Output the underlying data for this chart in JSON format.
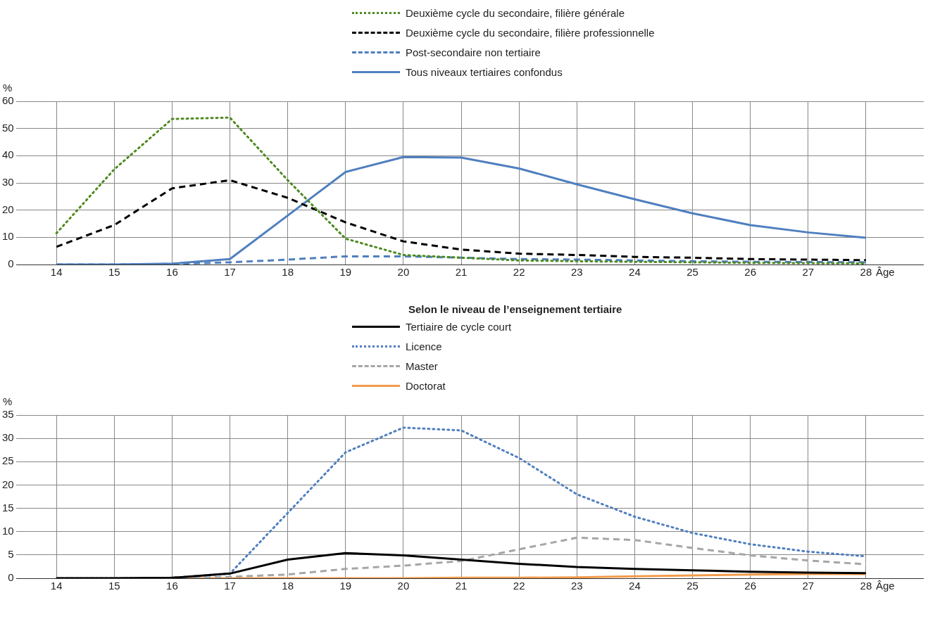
{
  "chart_data": [
    {
      "type": "line",
      "ylabel": "%",
      "xlabel": "Âge",
      "legend": "top",
      "grid": true,
      "marker": "none",
      "xlim": [
        13.3,
        29
      ],
      "xticks": [
        14,
        15,
        16,
        17,
        18,
        19,
        20,
        21,
        22,
        23,
        24,
        25,
        26,
        27,
        28
      ],
      "ylim": [
        0,
        60
      ],
      "yticks": [
        0,
        10,
        20,
        30,
        40,
        50,
        60
      ],
      "x": [
        14,
        15,
        16,
        17,
        18,
        19,
        20,
        21,
        22,
        23,
        24,
        25,
        26,
        27,
        28
      ],
      "series": [
        {
          "name": "Deuxième cycle du secondaire, filière générale",
          "color": "#4e8a1e",
          "line_style": "dotted",
          "values": [
            11.5,
            35,
            53.5,
            54,
            31,
            9.5,
            3.5,
            2.5,
            1.5,
            1.2,
            1,
            0.8,
            0.6,
            0.5,
            0.4
          ]
        },
        {
          "name": "Deuxième cycle du secondaire, filière professionnelle",
          "color": "#000000",
          "line_style": "dashed",
          "values": [
            6.5,
            14.5,
            28,
            31,
            24.5,
            15.5,
            8.5,
            5.5,
            4,
            3.5,
            2.8,
            2.5,
            2,
            1.8,
            1.6
          ]
        },
        {
          "name": "Post-secondaire non tertiaire",
          "color": "#4f7fbf",
          "line_style": "dashed",
          "values": [
            0,
            0,
            0.2,
            0.8,
            1.8,
            3,
            3,
            2.5,
            2,
            1.8,
            1.5,
            1.2,
            1,
            0.9,
            0.8
          ]
        },
        {
          "name": "Tous niveaux tertiaires confondus",
          "color": "#4f7fbf",
          "line_style": "solid",
          "values": [
            0,
            0,
            0.3,
            2,
            18,
            34,
            39.5,
            39.3,
            35.3,
            29.5,
            24,
            18.8,
            14.5,
            11.8,
            9.8
          ]
        }
      ]
    },
    {
      "type": "line",
      "title": "Selon le niveau de l’enseignement tertiaire",
      "ylabel": "%",
      "xlabel": "Âge",
      "legend": "top",
      "grid": true,
      "marker": "none",
      "xlim": [
        13.3,
        29
      ],
      "xticks": [
        14,
        15,
        16,
        17,
        18,
        19,
        20,
        21,
        22,
        23,
        24,
        25,
        26,
        27,
        28
      ],
      "ylim": [
        0,
        35
      ],
      "yticks": [
        0,
        5,
        10,
        15,
        20,
        25,
        30,
        35
      ],
      "x": [
        14,
        15,
        16,
        17,
        18,
        19,
        20,
        21,
        22,
        23,
        24,
        25,
        26,
        27,
        28
      ],
      "series": [
        {
          "name": "Tertiaire de cycle court",
          "color": "#000000",
          "line_style": "solid",
          "values": [
            0,
            0,
            0.1,
            1,
            4,
            5.4,
            4.9,
            4,
            3.1,
            2.4,
            2,
            1.7,
            1.4,
            1.2,
            1.1
          ]
        },
        {
          "name": "Licence",
          "color": "#4f7fbf",
          "line_style": "dotted",
          "values": [
            0,
            0,
            0.1,
            1,
            14,
            27,
            32.3,
            31.7,
            25.8,
            18,
            13.2,
            9.7,
            7.3,
            5.7,
            4.7
          ]
        },
        {
          "name": "Master",
          "color": "#a6a6a6",
          "line_style": "dashed",
          "values": [
            0,
            0,
            0,
            0.3,
            0.8,
            2,
            2.7,
            3.7,
            6.2,
            8.7,
            8.2,
            6.5,
            4.9,
            3.8,
            3
          ]
        },
        {
          "name": "Doctorat",
          "color": "#f29b4b",
          "line_style": "solid",
          "values": [
            0,
            0,
            0,
            0,
            0,
            0,
            0,
            0.1,
            0.1,
            0.2,
            0.4,
            0.6,
            0.8,
            0.9,
            0.9
          ]
        }
      ]
    }
  ]
}
